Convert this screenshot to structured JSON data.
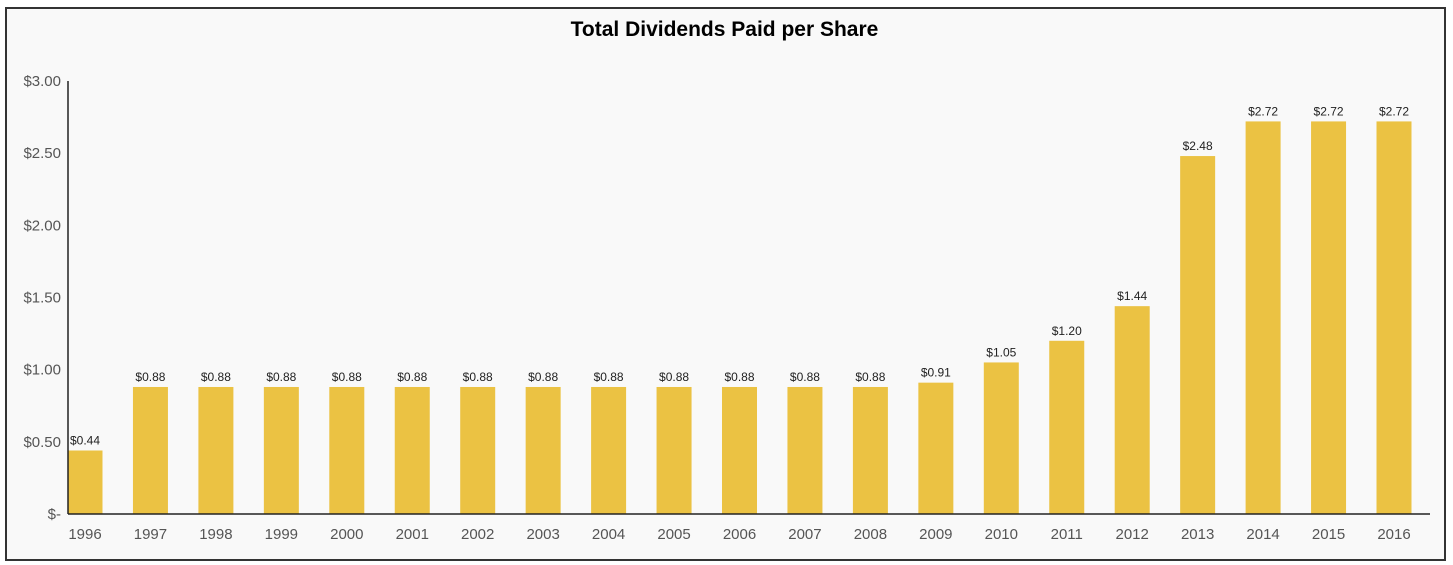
{
  "chart_data": {
    "type": "bar",
    "title": "Total Dividends Paid per Share",
    "categories": [
      "1996",
      "1997",
      "1998",
      "1999",
      "2000",
      "2001",
      "2002",
      "2003",
      "2004",
      "2005",
      "2006",
      "2007",
      "2008",
      "2009",
      "2010",
      "2011",
      "2012",
      "2013",
      "2014",
      "2015",
      "2016"
    ],
    "values": [
      0.44,
      0.88,
      0.88,
      0.88,
      0.88,
      0.88,
      0.88,
      0.88,
      0.88,
      0.88,
      0.88,
      0.88,
      0.88,
      0.91,
      1.05,
      1.2,
      1.44,
      2.48,
      2.72,
      2.72,
      2.72
    ],
    "data_labels": [
      "$0.44",
      "$0.88",
      "$0.88",
      "$0.88",
      "$0.88",
      "$0.88",
      "$0.88",
      "$0.88",
      "$0.88",
      "$0.88",
      "$0.88",
      "$0.88",
      "$0.88",
      "$0.91",
      "$1.05",
      "$1.20",
      "$1.44",
      "$2.48",
      "$2.72",
      "$2.72",
      "$2.72"
    ],
    "yticks": [
      0,
      0.5,
      1,
      1.5,
      2,
      2.5,
      3
    ],
    "ytick_labels": [
      "$-",
      "$0.50",
      "$1.00",
      "$1.50",
      "$2.00",
      "$2.50",
      "$3.00"
    ],
    "ylim": [
      0,
      3
    ],
    "xlabel": "",
    "ylabel": "",
    "grid": false,
    "bar_color": "#EBC243"
  }
}
